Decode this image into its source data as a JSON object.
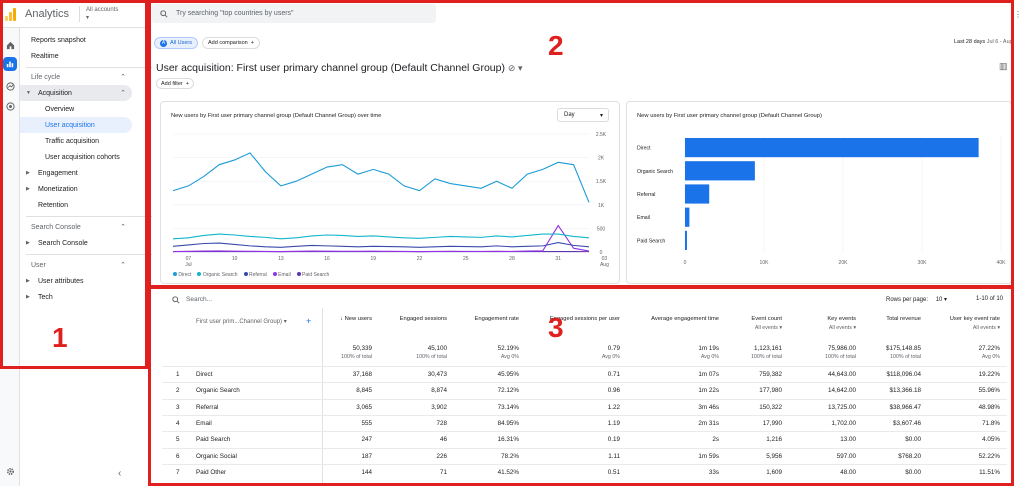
{
  "app": {
    "title": "Analytics",
    "account_line1": "All accounts",
    "account_line2": "▾"
  },
  "rail": {
    "icons": [
      "home-icon",
      "reports-icon",
      "explore-icon",
      "advertising-icon",
      "settings-icon"
    ]
  },
  "sidebar": {
    "top_items": [
      "Reports snapshot",
      "Realtime"
    ],
    "lifecycle_label": "Life cycle",
    "acquisition_label": "Acquisition",
    "acquisition_children": [
      "Overview",
      "User acquisition",
      "Traffic acquisition",
      "User acquisition cohorts"
    ],
    "engagement": "Engagement",
    "monetization": "Monetization",
    "retention": "Retention",
    "search_console_group": "Search Console",
    "search_console_item": "Search Console",
    "user_group": "User",
    "user_attributes": "User attributes",
    "tech": "Tech",
    "collapse": "‹"
  },
  "search": {
    "placeholder": "Try searching \"top countries by users\""
  },
  "header": {
    "all_users_chip": "All Users",
    "add_comparison": "Add comparison",
    "date_label": "Last 28 days",
    "date_range": "Jul 6 - Aug",
    "report_title": "User acquisition: First user primary channel group (Default Channel Group)",
    "add_filter": "Add filter"
  },
  "line_card": {
    "title": "New users by First user primary channel group (Default Channel Group) over time",
    "dropdown": "Day",
    "y_ticks": [
      "2.5K",
      "2K",
      "1.5K",
      "1K",
      "500",
      "0"
    ],
    "x_ticks": [
      "07",
      "10",
      "13",
      "16",
      "19",
      "22",
      "25",
      "28",
      "31",
      "03"
    ],
    "x_sub": {
      "first": "Jul",
      "last": "Aug"
    },
    "legend": [
      {
        "name": "Direct",
        "color": "#1a73e8"
      },
      {
        "name": "Organic Search",
        "color": "#12b5cb"
      },
      {
        "name": "Referral",
        "color": "#3949ab"
      },
      {
        "name": "Email",
        "color": "#9334e6"
      },
      {
        "name": "Paid Search",
        "color": "#5e35b1"
      }
    ]
  },
  "chart_data": [
    {
      "type": "line",
      "title": "New users by First user primary channel group (Default Channel Group) over time",
      "x": [
        "Jul 6",
        "Jul 7",
        "Jul 8",
        "Jul 9",
        "Jul 10",
        "Jul 11",
        "Jul 12",
        "Jul 13",
        "Jul 14",
        "Jul 15",
        "Jul 16",
        "Jul 17",
        "Jul 18",
        "Jul 19",
        "Jul 20",
        "Jul 21",
        "Jul 22",
        "Jul 23",
        "Jul 24",
        "Jul 25",
        "Jul 26",
        "Jul 27",
        "Jul 28",
        "Jul 29",
        "Jul 30",
        "Jul 31",
        "Aug 1",
        "Aug 2"
      ],
      "ylim": [
        0,
        2500
      ],
      "series": [
        {
          "name": "Direct",
          "color": "#1a9bd7",
          "values": [
            1300,
            1400,
            1600,
            1850,
            1950,
            2100,
            1700,
            1400,
            1500,
            1650,
            1800,
            1850,
            1650,
            1750,
            1650,
            1400,
            1300,
            1550,
            1450,
            1400,
            1350,
            1500,
            1350,
            1650,
            1750,
            1900,
            1850,
            1050
          ]
        },
        {
          "name": "Organic Search",
          "color": "#12b5cb",
          "values": [
            280,
            300,
            350,
            380,
            360,
            330,
            310,
            280,
            300,
            340,
            360,
            350,
            330,
            340,
            320,
            300,
            290,
            310,
            330,
            320,
            310,
            340,
            320,
            350,
            380,
            380,
            330,
            300
          ]
        },
        {
          "name": "Referral",
          "color": "#3949ab",
          "values": [
            120,
            150,
            180,
            190,
            160,
            130,
            110,
            100,
            120,
            140,
            130,
            120,
            110,
            120,
            115,
            110,
            100,
            110,
            120,
            115,
            110,
            130,
            110,
            120,
            130,
            200,
            140,
            110
          ]
        },
        {
          "name": "Email",
          "color": "#9334e6",
          "values": [
            10,
            15,
            20,
            22,
            18,
            15,
            12,
            10,
            15,
            20,
            18,
            16,
            15,
            17,
            14,
            12,
            10,
            12,
            14,
            13,
            12,
            15,
            12,
            20,
            25,
            560,
            80,
            20
          ]
        },
        {
          "name": "Paid Search",
          "color": "#5e35b1",
          "values": [
            8,
            9,
            10,
            9,
            8,
            9,
            8,
            7,
            9,
            10,
            9,
            9,
            8,
            9,
            8,
            8,
            7,
            9,
            9,
            8,
            8,
            9,
            8,
            9,
            10,
            10,
            9,
            8
          ]
        }
      ]
    },
    {
      "type": "bar",
      "title": "New users by First user primary channel group (Default Channel Group)",
      "categories": [
        "Direct",
        "Organic Search",
        "Referral",
        "Email",
        "Paid Search"
      ],
      "values": [
        37168,
        8845,
        3065,
        555,
        247
      ],
      "xlim": [
        0,
        40000
      ],
      "x_ticks": [
        "0",
        "10K",
        "20K",
        "30K",
        "40K"
      ]
    }
  ],
  "table": {
    "search_placeholder": "Search...",
    "rows_per_page_label": "Rows per page:",
    "rows_per_page": "10",
    "pagination": "1-10 of 10",
    "dimension_header": "First user prim...Channel Group)",
    "columns": [
      {
        "label": "↓ New users",
        "sub": "",
        "total": "50,339",
        "total_sub": "100% of total"
      },
      {
        "label": "Engaged sessions",
        "sub": "",
        "total": "45,100",
        "total_sub": "100% of total"
      },
      {
        "label": "Engagement rate",
        "sub": "",
        "total": "52.19%",
        "total_sub": "Avg 0%"
      },
      {
        "label": "Engaged sessions per user",
        "sub": "",
        "total": "0.79",
        "total_sub": "Avg 0%"
      },
      {
        "label": "Average engagement time",
        "sub": "",
        "total": "1m 19s",
        "total_sub": "Avg 0%"
      },
      {
        "label": "Event count",
        "sub": "All events ▾",
        "total": "1,123,161",
        "total_sub": "100% of total"
      },
      {
        "label": "Key events",
        "sub": "All events ▾",
        "total": "75,986.00",
        "total_sub": "100% of total"
      },
      {
        "label": "Total revenue",
        "sub": "",
        "total": "$175,148.85",
        "total_sub": "100% of total"
      },
      {
        "label": "User key event rate",
        "sub": "All events ▾",
        "total": "27.22%",
        "total_sub": "Avg 0%"
      }
    ],
    "rows": [
      {
        "n": "1",
        "name": "Direct",
        "v": [
          "37,168",
          "30,473",
          "45.95%",
          "0.71",
          "1m 07s",
          "759,382",
          "44,643.00",
          "$118,096.04",
          "19.22%"
        ]
      },
      {
        "n": "2",
        "name": "Organic Search",
        "v": [
          "8,845",
          "8,874",
          "72.12%",
          "0.96",
          "1m 22s",
          "177,980",
          "14,642.00",
          "$13,366.18",
          "55.96%"
        ]
      },
      {
        "n": "3",
        "name": "Referral",
        "v": [
          "3,065",
          "3,902",
          "73.14%",
          "1.22",
          "3m 46s",
          "150,322",
          "13,725.00",
          "$38,966.47",
          "48.98%"
        ]
      },
      {
        "n": "4",
        "name": "Email",
        "v": [
          "555",
          "728",
          "84.95%",
          "1.19",
          "2m 31s",
          "17,990",
          "1,702.00",
          "$3,607.46",
          "71.8%"
        ]
      },
      {
        "n": "5",
        "name": "Paid Search",
        "v": [
          "247",
          "46",
          "16.31%",
          "0.19",
          "2s",
          "1,216",
          "13.00",
          "$0.00",
          "4.05%"
        ]
      },
      {
        "n": "6",
        "name": "Organic Social",
        "v": [
          "187",
          "226",
          "78.2%",
          "1.11",
          "1m 59s",
          "5,956",
          "597.00",
          "$768.20",
          "52.22%"
        ]
      },
      {
        "n": "7",
        "name": "Paid Other",
        "v": [
          "144",
          "71",
          "41.52%",
          "0.51",
          "33s",
          "1,609",
          "48.00",
          "$0.00",
          "11.51%"
        ]
      }
    ]
  },
  "annotations": {
    "box1": "1",
    "box2": "2",
    "box3": "3"
  }
}
